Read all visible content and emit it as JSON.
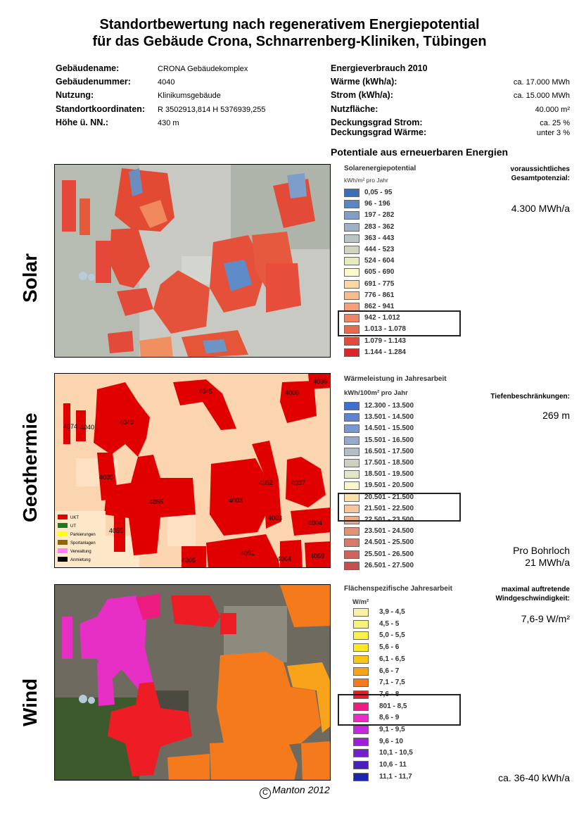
{
  "title": {
    "line1": "Standortbewertung nach regenerativem Energiepotential",
    "line2": "für das Gebäude Crona, Schnarrenberg-Kliniken, Tübingen"
  },
  "building": {
    "name_label": "Gebäudename:",
    "name": "CRONA Gebäudekomplex",
    "number_label": "Gebäudenummer:",
    "number": "4040",
    "use_label": "Nutzung:",
    "use": "Klinikumsgebäude",
    "coords_label": "Standortkoordinaten:",
    "coords": "R 3502913,814 H 5376939,255",
    "height_label": "Höhe ü. NN.:",
    "height": "430 m"
  },
  "energy": {
    "heading": "Energieverbrauch 2010",
    "heat_label": "Wärme (kWh/a):",
    "heat": "ca. 17.000 MWh",
    "power_label": "Strom (kWh/a):",
    "power": "ca. 15.000 MWh",
    "area_label": "Nutzfläche:",
    "area": "40.000 m²",
    "cov_power_label": "Deckungsgrad Strom:",
    "cov_power": "ca.  25 %",
    "cov_heat_label": "Deckungsgrad Wärme:",
    "cov_heat": "unter 3 %"
  },
  "potentials_heading": "Potentiale aus erneuerbaren Energien",
  "solar": {
    "side_label": "Solar",
    "legend_title": "Solarenergiepotential",
    "legend_unit": "kWh/m² pro Jahr",
    "right_label_1": "voraussichtliches",
    "right_label_2": "Gesamtpotenzial:",
    "right_value": "4.300 MWh/a",
    "legend": [
      {
        "label": "0,05 - 95",
        "color": "#3b6fb8"
      },
      {
        "label": "96 - 196",
        "color": "#5a86c2"
      },
      {
        "label": "197 - 282",
        "color": "#7f9fc8"
      },
      {
        "label": "283 - 362",
        "color": "#9fb2c5"
      },
      {
        "label": "363 - 443",
        "color": "#b9c4c5"
      },
      {
        "label": "444 - 523",
        "color": "#cfd6bd"
      },
      {
        "label": "524 - 604",
        "color": "#e6ecc0"
      },
      {
        "label": "605 - 690",
        "color": "#fdf9c9"
      },
      {
        "label": "691 - 775",
        "color": "#fbd7a5"
      },
      {
        "label": "776 - 861",
        "color": "#f8bb8e"
      },
      {
        "label": "862 - 941",
        "color": "#f5a07a"
      },
      {
        "label": "942 - 1.012",
        "color": "#f08564"
      },
      {
        "label": "1.013 - 1.078",
        "color": "#e96a4e"
      },
      {
        "label": "1.079 - 1.143",
        "color": "#e34a3a"
      },
      {
        "label": "1.144 - 1.284",
        "color": "#d9262a"
      }
    ]
  },
  "geo": {
    "side_label": "Geothermie",
    "legend_title": "Wärmeleistung in Jahresarbeit",
    "legend_unit": "kWh/100m² pro Jahr",
    "right_label": "Tiefenbeschränkungen:",
    "right_value": "269 m",
    "bottom_value_1": "Pro Bohrloch",
    "bottom_value_2": "21 MWh/a",
    "legend": [
      {
        "label": "12.300 - 13.500",
        "color": "#3f6fcf"
      },
      {
        "label": "13.501 - 14.500",
        "color": "#5f84d0"
      },
      {
        "label": "14.501 - 15.500",
        "color": "#7b97cf"
      },
      {
        "label": "15.501 - 16.500",
        "color": "#98aacb"
      },
      {
        "label": "16.501 - 17.500",
        "color": "#b4bdc5"
      },
      {
        "label": "17.501 - 18.500",
        "color": "#cdd1c2"
      },
      {
        "label": "18.501 - 19.500",
        "color": "#e3e6c8"
      },
      {
        "label": "19.501 - 20.500",
        "color": "#fbf7cd"
      },
      {
        "label": "20.501 - 21.500",
        "color": "#fae0ad"
      },
      {
        "label": "21.501 - 22.500",
        "color": "#f5c59b"
      },
      {
        "label": "22.501 - 23.500",
        "color": "#edaa86"
      },
      {
        "label": "23.501 - 24.500",
        "color": "#e39276"
      },
      {
        "label": "24.501 - 25.500",
        "color": "#d97b69"
      },
      {
        "label": "25.501 - 26.500",
        "color": "#cf645a"
      },
      {
        "label": "26.501 - 27.500",
        "color": "#c44f4c"
      }
    ],
    "map_labels": {
      "b4074": "4074",
      "b4040a": "4040",
      "b4040": "4040",
      "b4045": "4045",
      "b4006": "4006",
      "b4036": "4036",
      "b4035": "4035",
      "b4055": "4055",
      "b4055b": "4055",
      "b4003": "4003",
      "b4052": "4052",
      "b4037": "4037",
      "b4003b": "4003",
      "b4004": "4004",
      "b4005": "4005",
      "b4051": "4051",
      "b4064": "4064",
      "b4059": "4059"
    },
    "map_legend": [
      {
        "label": "UKT",
        "color": "#e00000"
      },
      {
        "label": "UT",
        "color": "#1e7a1e"
      },
      {
        "label": "Parkierungen",
        "color": "#ffff00"
      },
      {
        "label": "Sportanlagen",
        "color": "#8a6a00"
      },
      {
        "label": "Verwaltung",
        "color": "#ff80ff"
      },
      {
        "label": "Anmietung",
        "color": "#000000"
      }
    ]
  },
  "wind": {
    "side_label": "Wind",
    "legend_title": "Flächenspezifische Jahresarbeit",
    "legend_unit": "W/m²",
    "right_label_1": "maximal auftretende",
    "right_label_2": "Windgeschwindigkeit:",
    "right_value": "7,6-9 W/m²",
    "bottom_value": "ca. 36-40 kWh/a",
    "legend": [
      {
        "label": "3,9 - 4,5",
        "color": "#f8f1a8"
      },
      {
        "label": "4,5 - 5",
        "color": "#f8f17a"
      },
      {
        "label": "5,0 - 5,5",
        "color": "#fbf24a"
      },
      {
        "label": "5,6 - 6",
        "color": "#fde823"
      },
      {
        "label": "6,1 - 6,5",
        "color": "#fbc515"
      },
      {
        "label": "6,6 - 7",
        "color": "#f9a31a"
      },
      {
        "label": "7,1 - 7,5",
        "color": "#f57a1c"
      },
      {
        "label": "7,6 - 8",
        "color": "#ee1c25"
      },
      {
        "label": "801 - 8,5",
        "color": "#ed1c80"
      },
      {
        "label": "8,6 - 9",
        "color": "#e72fc6"
      },
      {
        "label": "9,1 - 9,5",
        "color": "#c42ad9"
      },
      {
        "label": "9,6 - 10",
        "color": "#9d1fd8"
      },
      {
        "label": "10,1 - 10,5",
        "color": "#7420cc"
      },
      {
        "label": "10,6 - 11",
        "color": "#4a1fbf"
      },
      {
        "label": "11,1 - 11,7",
        "color": "#1d25b0"
      }
    ]
  },
  "credit": {
    "symbol": "C",
    "text": "Manton 2012"
  }
}
